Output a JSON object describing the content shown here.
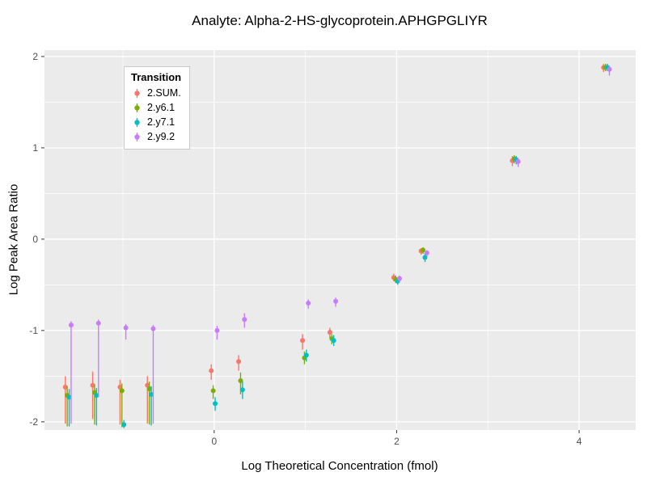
{
  "chart_data": {
    "type": "scatter",
    "title": "Analyte: Alpha-2-HS-glycoprotein.APHGPGLIYR",
    "xlabel": "Log Theoretical Concentration (fmol)",
    "ylabel": "Log Peak Area Ratio",
    "legend_title": "Transition",
    "legend_position": "top-left-inside",
    "grid": "on",
    "panel_background": "#EBEBEB",
    "gridline_color": "#FFFFFF",
    "xlim": [
      -1.86,
      4.62
    ],
    "ylim": [
      -2.09,
      2.07
    ],
    "x_major_ticks": [
      0,
      2,
      4
    ],
    "x_minor_ticks": [
      -1,
      1,
      3
    ],
    "y_major_ticks": [
      -2,
      -1,
      0,
      1,
      2
    ],
    "y_minor_ticks": [
      -1.5,
      -0.5,
      0.5,
      1.5
    ],
    "x": [
      -1.6,
      -1.3,
      -1.0,
      -0.7,
      0,
      0.3,
      1.0,
      1.3,
      2.0,
      2.3,
      3.3,
      4.3
    ],
    "series": [
      {
        "name": "2.SUM.",
        "color": "#F8766D",
        "y": [
          -1.62,
          -1.6,
          -1.62,
          -1.6,
          -1.44,
          -1.34,
          -1.11,
          -1.02,
          -0.42,
          -0.13,
          0.86,
          1.88
        ],
        "lo": [
          -2.02,
          -1.97,
          -2.03,
          -2.02,
          -1.54,
          -1.44,
          -1.21,
          -1.08,
          -0.46,
          -0.17,
          0.8,
          1.83
        ],
        "hi": [
          -1.5,
          -1.45,
          -1.54,
          -1.5,
          -1.37,
          -1.27,
          -1.04,
          -0.97,
          -0.38,
          -0.1,
          0.91,
          1.92
        ]
      },
      {
        "name": "2.y6.1",
        "color": "#7CAE00",
        "y": [
          -1.71,
          -1.68,
          -1.66,
          -1.64,
          -1.66,
          -1.55,
          -1.3,
          -1.09,
          -0.44,
          -0.12,
          0.88,
          1.88
        ],
        "lo": [
          -2.05,
          -2.03,
          -2.06,
          -2.03,
          -1.75,
          -1.7,
          -1.37,
          -1.15,
          -0.48,
          -0.16,
          0.83,
          1.84
        ],
        "hi": [
          -1.61,
          -1.59,
          -1.58,
          -1.56,
          -1.6,
          -1.46,
          -1.23,
          -1.04,
          -0.4,
          -0.09,
          0.92,
          1.92
        ]
      },
      {
        "name": "2.y7.1",
        "color": "#00BFC4",
        "y": [
          -1.73,
          -1.71,
          -2.03,
          -1.7,
          -1.8,
          -1.65,
          -1.27,
          -1.11,
          -0.46,
          -0.2,
          0.87,
          1.88
        ],
        "lo": [
          -2.05,
          -2.04,
          -2.07,
          -2.04,
          -1.88,
          -1.75,
          -1.34,
          -1.17,
          -0.5,
          -0.25,
          0.82,
          1.84
        ],
        "hi": [
          -1.64,
          -1.63,
          -1.98,
          -1.61,
          -1.73,
          -1.56,
          -1.21,
          -1.05,
          -0.42,
          -0.15,
          0.91,
          1.92
        ]
      },
      {
        "name": "2.y9.2",
        "color": "#C77CFF",
        "y": [
          -0.94,
          -0.92,
          -0.97,
          -0.98,
          -1.0,
          -0.88,
          -0.7,
          -0.68,
          -0.43,
          -0.15,
          0.85,
          1.86
        ],
        "lo": [
          -2.02,
          -1.73,
          -1.1,
          -2.02,
          -1.1,
          -0.97,
          -0.76,
          -0.74,
          -0.47,
          -0.19,
          0.79,
          1.79
        ],
        "hi": [
          -0.9,
          -0.88,
          -0.93,
          -0.94,
          -0.95,
          -0.81,
          -0.66,
          -0.64,
          -0.4,
          -0.12,
          0.89,
          1.9
        ]
      }
    ]
  }
}
